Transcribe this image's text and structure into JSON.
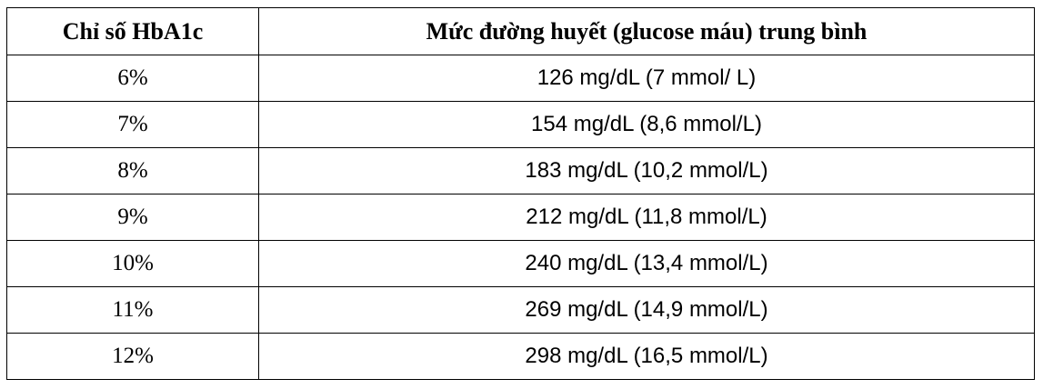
{
  "table": {
    "headers": [
      "Chỉ số HbA1c",
      "Mức đường huyết (glucose máu) trung bình"
    ],
    "rows": [
      [
        "6%",
        "126 mg/dL (7 mmol/ L)"
      ],
      [
        "7%",
        "154 mg/dL (8,6 mmol/L)"
      ],
      [
        "8%",
        "183 mg/dL (10,2 mmol/L)"
      ],
      [
        "9%",
        "212 mg/dL (11,8 mmol/L)"
      ],
      [
        "10%",
        "240 mg/dL (13,4 mmol/L)"
      ],
      [
        "11%",
        "269 mg/dL (14,9 mmol/L)"
      ],
      [
        "12%",
        "298 mg/dL (16,5 mmol/L)"
      ]
    ]
  }
}
